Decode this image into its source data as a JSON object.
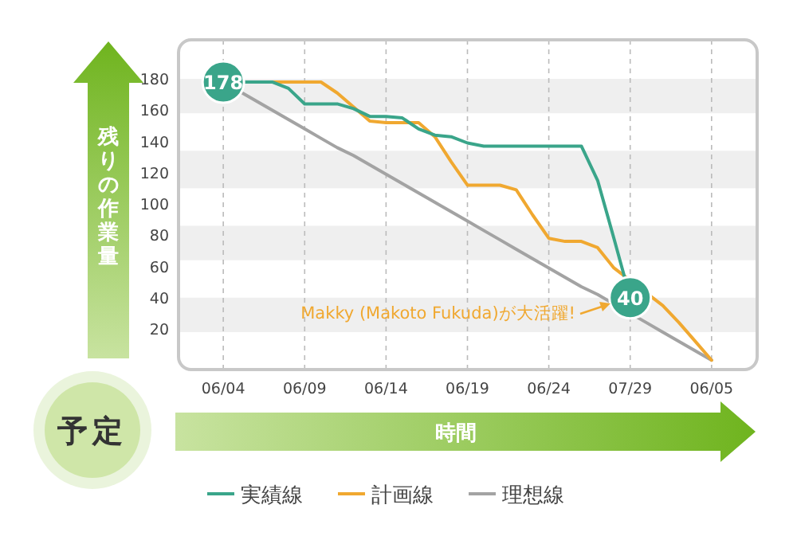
{
  "chart_data": {
    "type": "line",
    "xlabel": "時間",
    "ylabel": "残りの作業量",
    "categories": [
      "06/04",
      null,
      null,
      null,
      null,
      "06/09",
      null,
      null,
      null,
      null,
      "06/14",
      null,
      null,
      null,
      null,
      "06/19",
      null,
      null,
      null,
      null,
      "06/24",
      null,
      null,
      null,
      null,
      "07/29",
      null,
      null,
      null,
      null,
      "06/05"
    ],
    "ylim": [
      -6,
      205
    ],
    "yticks": [
      20,
      40,
      60,
      80,
      100,
      120,
      140,
      160,
      180
    ],
    "grid": "x",
    "legend": "bottom",
    "line_style": "solid",
    "bands": [
      {
        "axis": "y",
        "from": 158,
        "to": 180,
        "color": "#efefef"
      },
      {
        "axis": "y",
        "from": 110,
        "to": 134,
        "color": "#efefef"
      },
      {
        "axis": "y",
        "from": 64,
        "to": 86,
        "color": "#efefef"
      },
      {
        "axis": "y",
        "from": 18,
        "to": 40,
        "color": "#efefef"
      }
    ],
    "series": [
      {
        "name": "実績線",
        "color": "#3aa58a",
        "values": [
          178,
          178,
          178,
          178,
          174,
          164,
          164,
          164,
          161,
          156,
          156,
          155,
          148,
          144,
          143,
          139,
          137,
          137,
          137,
          137,
          137,
          137,
          137,
          115,
          78,
          40,
          null,
          null,
          null,
          null,
          null
        ],
        "value_labels": [
          "178",
          null,
          null,
          null,
          null,
          null,
          null,
          null,
          null,
          null,
          null,
          null,
          null,
          null,
          null,
          null,
          null,
          null,
          null,
          null,
          null,
          null,
          null,
          null,
          null,
          "40",
          null,
          null,
          null,
          null,
          null
        ]
      },
      {
        "name": "計画線",
        "color": "#f0a830",
        "values": [
          null,
          null,
          178,
          178,
          178,
          178,
          178,
          171,
          162,
          153,
          152,
          152,
          152,
          143,
          127,
          112,
          112,
          112,
          109,
          93,
          78,
          76,
          76,
          72,
          59,
          null,
          43,
          35,
          24,
          12,
          0
        ]
      },
      {
        "name": "理想線",
        "color": "#a3a3a3",
        "values": [
          178,
          172,
          166,
          160,
          154,
          148,
          142,
          136,
          131,
          125,
          119,
          113,
          107,
          101,
          95,
          89,
          83,
          77,
          71,
          65,
          59,
          53,
          47,
          42,
          36,
          30,
          24,
          18,
          12,
          6,
          0
        ]
      }
    ],
    "annotations": [
      "Makky (Makoto Fukuda)が大活躍!",
      "予定"
    ]
  }
}
